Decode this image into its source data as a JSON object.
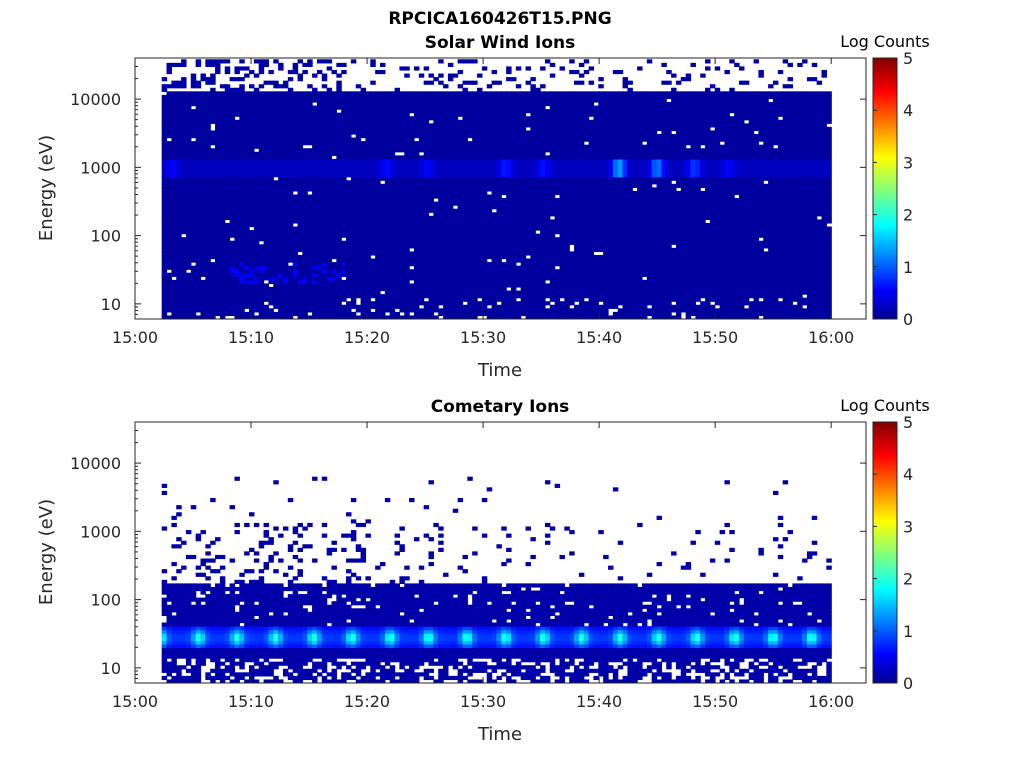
{
  "figure_title": "RPCICA160426T15.PNG",
  "chart_data": [
    {
      "type": "heatmap",
      "title": "Solar Wind Ions",
      "xlabel": "Time",
      "ylabel": "Energy (eV)",
      "x_ticks": [
        "15:00",
        "15:10",
        "15:20",
        "15:30",
        "15:40",
        "15:50",
        "16:00"
      ],
      "xlim_minutes": [
        0,
        63
      ],
      "data_x_range_minutes": [
        2.3,
        60
      ],
      "y_scale": "log",
      "y_ticks": [
        10,
        100,
        1000,
        10000
      ],
      "y_tick_labels": [
        "10",
        "100",
        "1000",
        "10000"
      ],
      "ylim": [
        6,
        40000
      ],
      "colorbar": {
        "label": "Log Counts",
        "range": [
          0,
          5
        ],
        "ticks": [
          "0",
          "1",
          "2",
          "3",
          "4",
          "5"
        ],
        "colormap": "jet"
      },
      "features": [
        {
          "description": "background",
          "energy_range_eV": [
            6,
            12500
          ],
          "log_counts": 0.2
        },
        {
          "description": "solar wind band",
          "energy_eV": 1000,
          "peak_times_minutes": [
            41.5,
            44.8,
            48.0
          ],
          "peak_log_counts": 1.1
        }
      ]
    },
    {
      "type": "heatmap",
      "title": "Cometary Ions",
      "xlabel": "Time",
      "ylabel": "Energy (eV)",
      "x_ticks": [
        "15:00",
        "15:10",
        "15:20",
        "15:30",
        "15:40",
        "15:50",
        "16:00"
      ],
      "xlim_minutes": [
        0,
        63
      ],
      "data_x_range_minutes": [
        2.3,
        60
      ],
      "y_scale": "log",
      "y_ticks": [
        10,
        100,
        1000,
        10000
      ],
      "y_tick_labels": [
        "10",
        "100",
        "1000",
        "10000"
      ],
      "ylim": [
        6,
        40000
      ],
      "colorbar": {
        "label": "Log Counts",
        "range": [
          0,
          5
        ],
        "ticks": [
          "0",
          "1",
          "2",
          "3",
          "4",
          "5"
        ],
        "colormap": "jet"
      },
      "features": [
        {
          "description": "background",
          "energy_range_eV": [
            6,
            170
          ],
          "log_counts": 0.2
        },
        {
          "description": "cometary ion band",
          "energy_range_eV": [
            20,
            40
          ],
          "peak_log_counts": 1.7,
          "pulse_period_minutes": 3.3
        }
      ]
    }
  ]
}
